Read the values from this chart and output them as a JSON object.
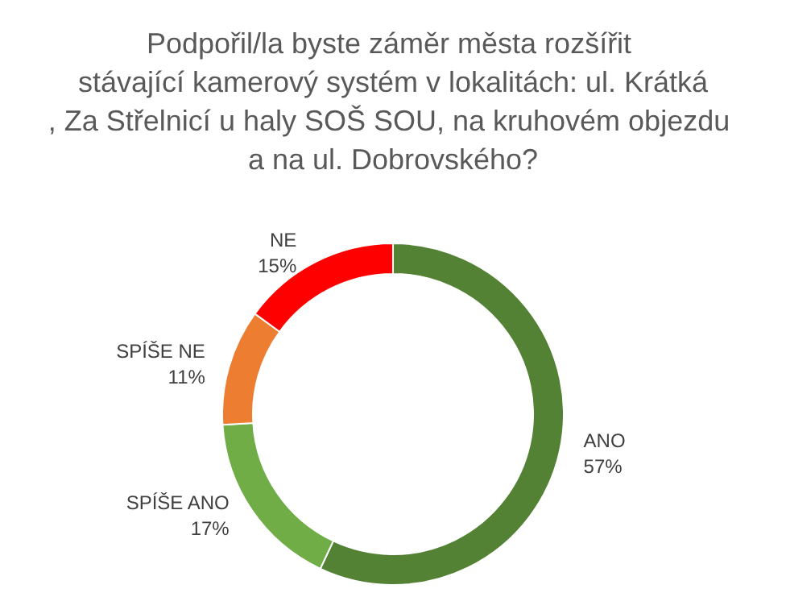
{
  "chart_data": {
    "type": "donut",
    "title": "Podpořil/la byste záměr města rozšířit stávající kamerový systém v lokalitách: ul. Krátká, Za Střelnicí u haly SOŠ SOU, na kruhovém objezdu a na ul. Dobrovského?",
    "categories": [
      "ANO",
      "SPÍŠE ANO",
      "SPÍŠE NE",
      "NE"
    ],
    "values": [
      57,
      17,
      11,
      15
    ],
    "colors": [
      "#548235",
      "#70ad47",
      "#ed7d31",
      "#ff0000"
    ],
    "value_labels": [
      "57%",
      "17%",
      "11%",
      "15%"
    ],
    "legend": false
  }
}
